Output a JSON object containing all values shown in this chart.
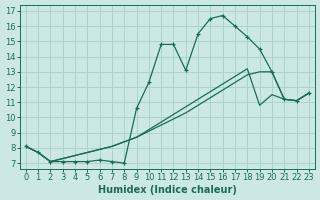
{
  "xlabel": "Humidex (Indice chaleur)",
  "bg_color": "#cce8e4",
  "grid_color": "#aad4ce",
  "line_color": "#1a6b5a",
  "xlim": [
    -0.5,
    23.5
  ],
  "ylim": [
    6.6,
    17.4
  ],
  "xticks": [
    0,
    1,
    2,
    3,
    4,
    5,
    6,
    7,
    8,
    9,
    10,
    11,
    12,
    13,
    14,
    15,
    16,
    17,
    18,
    19,
    20,
    21,
    22,
    23
  ],
  "yticks": [
    7,
    8,
    9,
    10,
    11,
    12,
    13,
    14,
    15,
    16,
    17
  ],
  "line1_x": [
    0,
    1,
    2,
    3,
    4,
    5,
    6,
    7,
    8,
    9,
    10,
    11,
    12,
    13,
    14,
    15,
    16,
    17,
    18,
    19,
    20,
    21,
    22,
    23
  ],
  "line1_y": [
    8.1,
    7.7,
    7.1,
    7.1,
    7.1,
    7.1,
    7.2,
    7.1,
    7.0,
    10.6,
    12.3,
    14.8,
    14.8,
    13.1,
    15.5,
    16.5,
    16.7,
    16.0,
    15.3,
    14.5,
    13.0,
    11.2,
    11.1,
    11.6
  ],
  "line2_x": [
    0,
    1,
    2,
    3,
    4,
    5,
    6,
    7,
    8,
    9,
    10,
    11,
    12,
    13,
    14,
    15,
    16,
    17,
    18,
    19,
    20,
    21,
    22,
    23
  ],
  "line2_y": [
    8.1,
    7.7,
    7.1,
    7.3,
    7.5,
    7.7,
    7.9,
    8.1,
    8.4,
    8.7,
    9.1,
    9.5,
    9.9,
    10.3,
    10.8,
    11.3,
    11.8,
    12.3,
    12.8,
    13.0,
    13.0,
    11.2,
    11.1,
    11.6
  ],
  "line3_x": [
    0,
    1,
    2,
    3,
    4,
    5,
    6,
    7,
    8,
    9,
    10,
    11,
    12,
    13,
    14,
    15,
    16,
    17,
    18,
    19,
    20,
    21,
    22,
    23
  ],
  "line3_y": [
    8.1,
    7.7,
    7.1,
    7.3,
    7.5,
    7.7,
    7.9,
    8.1,
    8.4,
    8.7,
    9.2,
    9.7,
    10.2,
    10.7,
    11.2,
    11.7,
    12.2,
    12.7,
    13.2,
    10.8,
    11.5,
    11.2,
    11.1,
    11.6
  ]
}
